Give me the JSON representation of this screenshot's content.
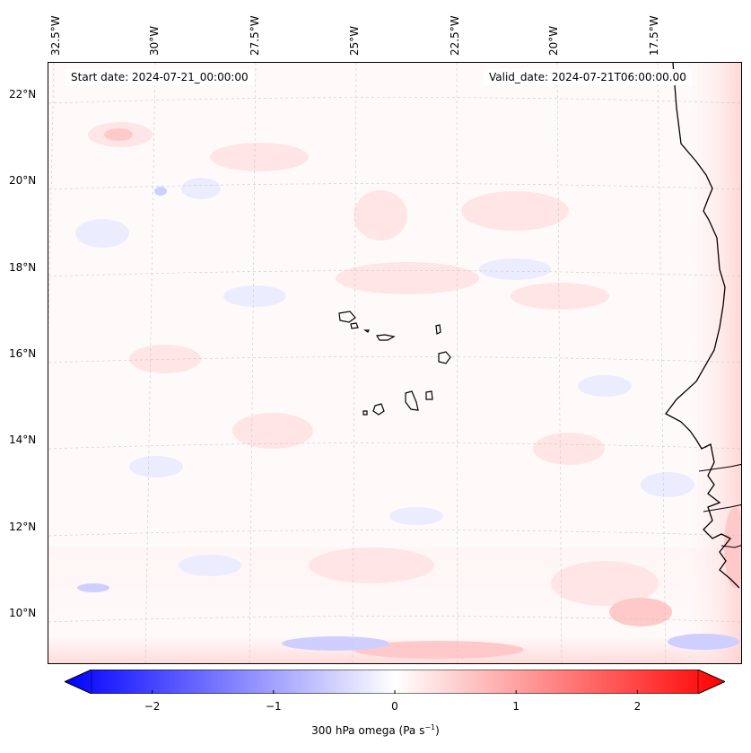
{
  "header": {
    "start_date": "Start date: 2024-07-21_00:00:00",
    "valid_date": "Valid_date: 2024-07-21T06:00:00.00"
  },
  "map": {
    "region": "Eastern tropical North Atlantic (Cape Verde Islands)",
    "longitude_labels": [
      "32.5°W",
      "30°W",
      "27.5°W",
      "25°W",
      "22.5°W",
      "20°W",
      "17.5°W"
    ],
    "latitude_labels": [
      "22°N",
      "20°N",
      "18°N",
      "16°N",
      "14°N",
      "12°N",
      "10°N"
    ],
    "gridlines": "dashed",
    "field": "300 hPa omega",
    "colormap": "bwr",
    "colors": {
      "negative": "#0000ff",
      "zero": "#ffffff",
      "positive": "#ff0000",
      "coastline": "#000000"
    }
  },
  "colorbar": {
    "label_main": "300 hPa omega (Pa s",
    "label_exp": "−1",
    "label_close": ")",
    "ticks": [
      "−2",
      "−1",
      "0",
      "1",
      "2"
    ],
    "tick_values": [
      -2,
      -1,
      0,
      1,
      2
    ],
    "range": [
      -2.5,
      2.5
    ],
    "extend": "both"
  }
}
